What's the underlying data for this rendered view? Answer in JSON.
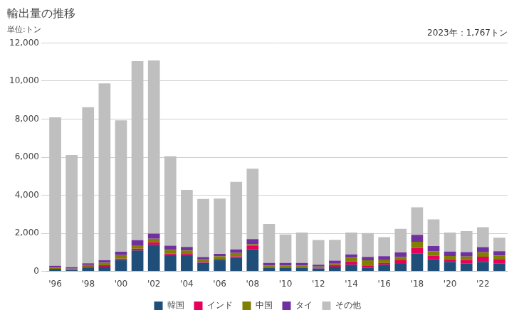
{
  "chart_data": {
    "type": "bar",
    "title": "輸出量の推移",
    "subtitle": "単位:トン",
    "annotations": [
      "2023年：1,767トン"
    ],
    "categories": [
      "'96",
      null,
      "'98",
      null,
      "'00",
      null,
      "'02",
      null,
      "'04",
      null,
      "'06",
      null,
      "'08",
      null,
      "'10",
      null,
      "'12",
      null,
      "'14",
      null,
      "'16",
      null,
      "'18",
      null,
      "'20",
      null,
      "'22",
      null
    ],
    "series": [
      {
        "name": "韓国",
        "color": "#1f4e79",
        "values": [
          100,
          80,
          200,
          250,
          600,
          1100,
          1400,
          850,
          850,
          450,
          600,
          700,
          1150,
          180,
          180,
          180,
          150,
          250,
          350,
          180,
          350,
          400,
          950,
          650,
          500,
          420,
          500,
          420
        ]
      },
      {
        "name": "インド",
        "color": "#e6005c",
        "values": [
          30,
          25,
          45,
          70,
          70,
          90,
          130,
          90,
          70,
          45,
          60,
          90,
          180,
          40,
          40,
          40,
          40,
          90,
          180,
          130,
          90,
          180,
          280,
          180,
          130,
          180,
          270,
          230
        ]
      },
      {
        "name": "中国",
        "color": "#7f7f00",
        "values": [
          70,
          40,
          90,
          130,
          180,
          180,
          180,
          180,
          180,
          130,
          130,
          180,
          90,
          90,
          90,
          90,
          70,
          90,
          180,
          270,
          180,
          180,
          320,
          230,
          180,
          180,
          230,
          180
        ]
      },
      {
        "name": "タイ",
        "color": "#7030a0",
        "values": [
          90,
          70,
          90,
          130,
          180,
          270,
          270,
          230,
          180,
          130,
          130,
          180,
          270,
          130,
          130,
          130,
          90,
          130,
          180,
          180,
          180,
          230,
          370,
          270,
          230,
          230,
          270,
          230
        ]
      },
      {
        "name": "その他",
        "color": "#bfbfbf",
        "values": [
          7800,
          5900,
          8200,
          9300,
          6900,
          9400,
          9100,
          4700,
          3000,
          3050,
          2900,
          3550,
          3700,
          2050,
          1500,
          1600,
          1300,
          1100,
          1150,
          1250,
          1000,
          1250,
          1450,
          1400,
          1000,
          1100,
          1050,
          707
        ]
      }
    ],
    "stacked": true,
    "ylim": [
      0,
      12000
    ],
    "yticks": [
      0,
      {
        "value": 2000,
        "label": "2,000"
      },
      {
        "value": 4000,
        "label": "4,000"
      },
      {
        "value": 6000,
        "label": "6,000"
      },
      {
        "value": 8000,
        "label": "8,000"
      },
      {
        "value": 10000,
        "label": "10,000"
      },
      {
        "value": 12000,
        "label": "12,000"
      }
    ],
    "grid": "y",
    "legend": "bottom"
  }
}
